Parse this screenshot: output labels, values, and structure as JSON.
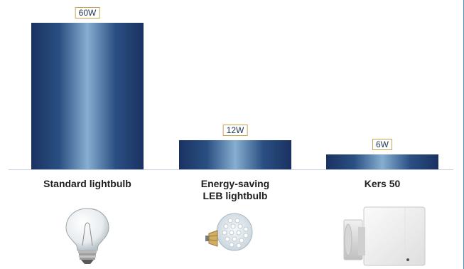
{
  "chart_data": {
    "type": "bar",
    "categories": [
      "Standard lightbulb",
      "Energy-saving\nLEB lightbulb",
      "Kers 50"
    ],
    "values": [
      60,
      12,
      6
    ],
    "data_labels": [
      "60W",
      "12W",
      "6W"
    ],
    "title": "",
    "xlabel": "",
    "ylabel": "",
    "ylim": [
      0,
      60
    ],
    "grid": false,
    "legend": "none"
  },
  "images": [
    {
      "icon": "incandescent-bulb-icon"
    },
    {
      "icon": "led-bulb-icon"
    },
    {
      "icon": "kers-50-unit-icon"
    }
  ]
}
